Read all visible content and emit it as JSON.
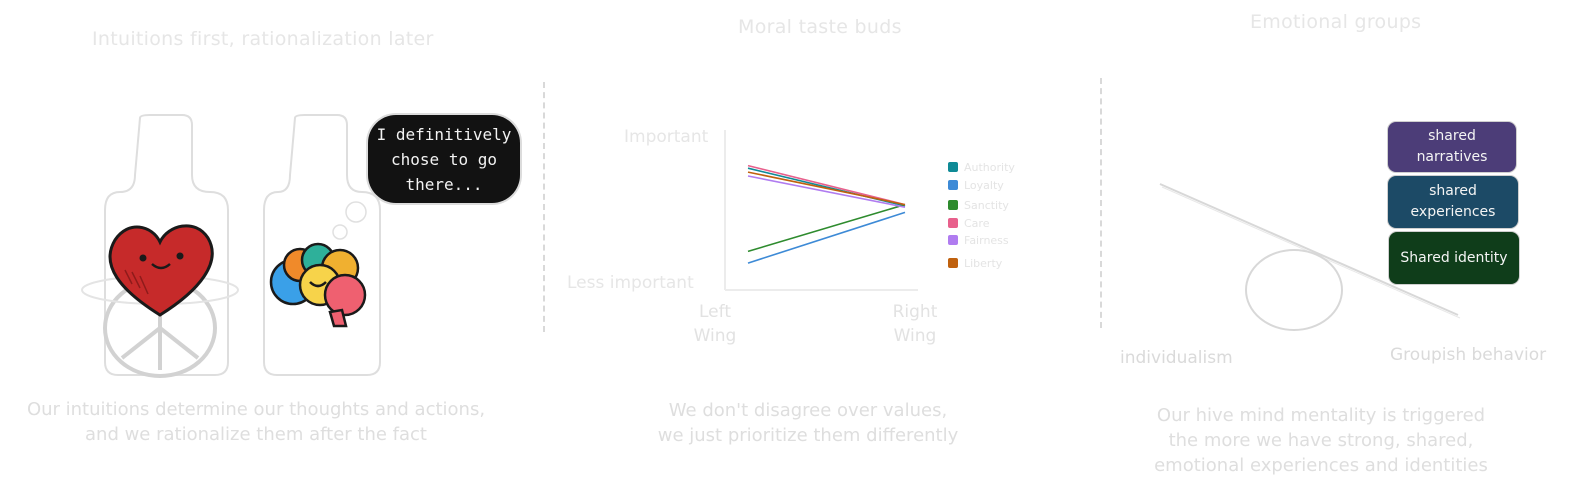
{
  "panels": {
    "intuitions": {
      "title": "Intuitions first, rationalization later",
      "speech_bubble": "I definitively chose to go there...",
      "caption_line1": "Our intuitions determine our thoughts and actions,",
      "caption_line2": "and we rationalize them after the fact"
    },
    "taste_buds": {
      "title": "Moral taste buds",
      "y_top_label": "Important",
      "y_bottom_label": "Less important",
      "x_left_label_line1": "Left",
      "x_left_label_line2": "Wing",
      "x_right_label_line1": "Right",
      "x_right_label_line2": "Wing",
      "caption_line1": "We don't disagree over values,",
      "caption_line2": "we just prioritize them differently"
    },
    "groups": {
      "title": "Emotional groups",
      "box_narratives": "shared narratives",
      "box_experiences": "shared experiences",
      "box_identity": "Shared identity",
      "left_label": "individualism",
      "right_label": "Groupish behavior",
      "caption_line1": "Our hive mind mentality is triggered",
      "caption_line2": "the more we have strong, shared,",
      "caption_line3": "emotional experiences and identities"
    }
  },
  "chart_data": {
    "type": "line",
    "x": [
      "Left Wing",
      "Right Wing"
    ],
    "ylabel_top": "Important",
    "ylabel_bottom": "Less important",
    "series": [
      {
        "name": "Authority",
        "color": "#0f8a96",
        "values": [
          0.86,
          0.57
        ]
      },
      {
        "name": "Loyalty",
        "color": "#3d8ad6",
        "values": [
          0.13,
          0.52
        ]
      },
      {
        "name": "Sanctity",
        "color": "#2e8b2e",
        "values": [
          0.22,
          0.58
        ]
      },
      {
        "name": "Care",
        "color": "#e8608c",
        "values": [
          0.88,
          0.58
        ]
      },
      {
        "name": "Fairness",
        "color": "#b07cf0",
        "values": [
          0.8,
          0.56
        ]
      },
      {
        "name": "Liberty",
        "color": "#c0610e",
        "values": [
          0.83,
          0.58
        ]
      }
    ]
  },
  "colors": {
    "box_narratives": "#4c3d78",
    "box_experiences": "#1c4a66",
    "box_identity": "#0f3d1a",
    "heart": "#c62a2a"
  },
  "icons": [
    "heart-icon",
    "brain-icon",
    "peace-symbol-icon"
  ]
}
